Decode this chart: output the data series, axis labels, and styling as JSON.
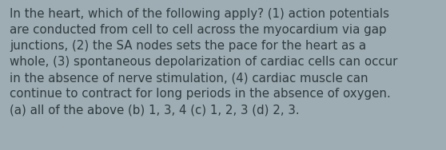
{
  "text": "In the heart, which of the following apply? (1) action potentials\nare conducted from cell to cell across the myocardium via gap\njunctions, (2) the SA nodes sets the pace for the heart as a\nwhole, (3) spontaneous depolarization of cardiac cells can occur\nin the absence of nerve stimulation, (4) cardiac muscle can\ncontinue to contract for long periods in the absence of oxygen.\n(a) all of the above (b) 1, 3, 4 (c) 1, 2, 3 (d) 2, 3.",
  "background_color": "#9eadb3",
  "text_color": "#2e3a3e",
  "font_size": 10.8,
  "fig_width": 5.58,
  "fig_height": 1.88,
  "dpi": 100
}
